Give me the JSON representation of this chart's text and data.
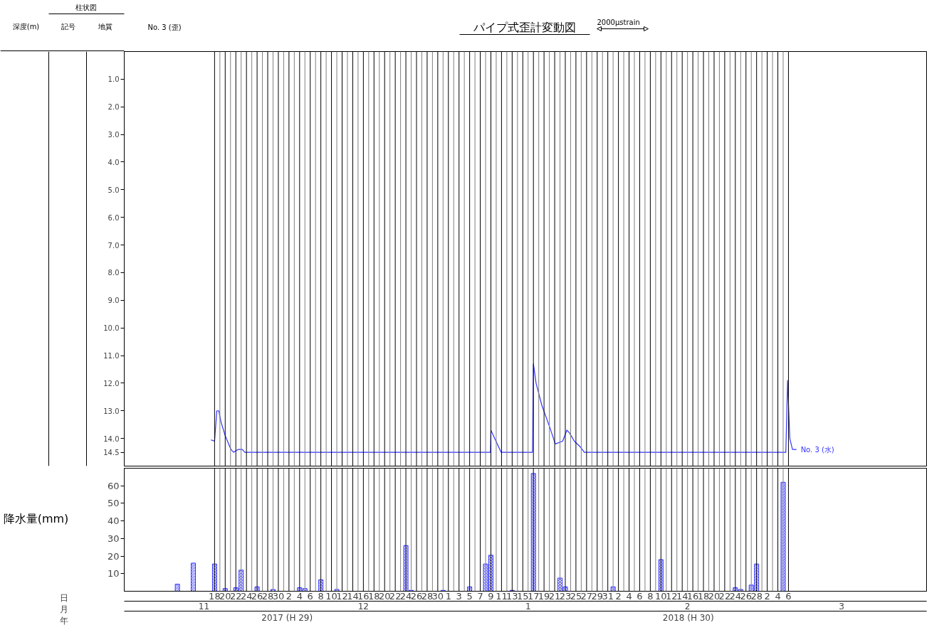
{
  "chart_data": [
    {
      "type": "line",
      "title": "パイプ式歪計変動図",
      "ylabel": "深度(m)",
      "annotations": [
        "柱状図",
        "記号",
        "地質",
        "No. 3 (歪)",
        "2000μstrain"
      ],
      "xlim": [
        "2017-11-01",
        "2018-04-01"
      ],
      "ylim": [
        15,
        0
      ],
      "yticks": [
        {
          "value": 1,
          "label": "1.0"
        },
        {
          "value": 2,
          "label": "2.0"
        },
        {
          "value": 3,
          "label": "3.0"
        },
        {
          "value": 4,
          "label": "4.0"
        },
        {
          "value": 5,
          "label": "5.0"
        },
        {
          "value": 6,
          "label": "6.0"
        },
        {
          "value": 7,
          "label": "7.0"
        },
        {
          "value": 8,
          "label": "8.0"
        },
        {
          "value": 9,
          "label": "9.0"
        },
        {
          "value": 10,
          "label": "10.0"
        },
        {
          "value": 11,
          "label": "11.0"
        },
        {
          "value": 12,
          "label": "12.0"
        },
        {
          "value": 13,
          "label": "13.0"
        },
        {
          "value": 14,
          "label": "14.0"
        },
        {
          "value": 14.5,
          "label": "14.5"
        }
      ],
      "tick_labels": "y",
      "series": [
        {
          "name": "No. 3 (水)",
          "color": "#3333ff",
          "x": [
            "2017-11-17T08:00",
            "2017-11-18",
            "2017-11-18T10:00",
            "2017-11-18T19:00",
            "2017-11-19T05:00",
            "2017-11-20",
            "2017-11-21T02:00",
            "2017-11-21T14:00",
            "2017-11-22T10:00",
            "2017-11-23T05:00",
            "2017-11-23T17:00",
            "2018-01-08T22:00",
            "2018-01-09",
            "2018-01-10T22:00",
            "2018-01-16T20:00",
            "2018-01-17",
            "2018-01-17T12:00",
            "2018-01-18T14:00",
            "2018-01-20T02:00",
            "2018-01-21T03:00",
            "2018-01-22T12:00",
            "2018-01-23T07:00",
            "2018-01-23T19:00",
            "2018-01-24T17:00",
            "2018-01-25T19:00",
            "2018-01-26T14:00",
            "2018-03-05T12:00",
            "2018-03-05T20:00",
            "2018-03-06T06:00",
            "2018-03-06T18:00",
            "2018-03-07T12:00"
          ],
          "values": [
            14.05,
            14.1,
            13.0,
            13.0,
            13.4,
            13.9,
            14.4,
            14.5,
            14.4,
            14.4,
            14.5,
            14.5,
            13.7,
            14.5,
            14.5,
            11.3,
            12.0,
            12.8,
            13.6,
            14.2,
            14.1,
            13.7,
            13.8,
            14.1,
            14.3,
            14.5,
            14.5,
            11.9,
            14.0,
            14.4,
            14.4
          ]
        }
      ],
      "ref_lines": [
        {
          "axis": "x",
          "value": "2017-11-18",
          "color": "#000000"
        },
        {
          "axis": "x",
          "value": "2017-11-19",
          "color": "#808080"
        },
        {
          "axis": "x",
          "value": "2017-11-20",
          "color": "#000000"
        },
        {
          "axis": "x",
          "value": "2017-11-21",
          "color": "#808080"
        },
        {
          "axis": "x",
          "value": "2017-11-22",
          "color": "#000000"
        },
        {
          "axis": "x",
          "value": "2017-11-23",
          "color": "#808080"
        },
        {
          "axis": "x",
          "value": "2017-11-24",
          "color": "#000000"
        },
        {
          "axis": "x",
          "value": "2017-11-25",
          "color": "#808080"
        },
        {
          "axis": "x",
          "value": "2017-11-26",
          "color": "#000000"
        },
        {
          "axis": "x",
          "value": "2017-11-27",
          "color": "#808080"
        },
        {
          "axis": "x",
          "value": "2017-11-28",
          "color": "#000000"
        },
        {
          "axis": "x",
          "value": "2017-11-29",
          "color": "#808080"
        },
        {
          "axis": "x",
          "value": "2017-11-30",
          "color": "#000000"
        },
        {
          "axis": "x",
          "value": "2017-12-01",
          "color": "#808080"
        },
        {
          "axis": "x",
          "value": "2017-12-02",
          "color": "#000000"
        },
        {
          "axis": "x",
          "value": "2017-12-03",
          "color": "#808080"
        },
        {
          "axis": "x",
          "value": "2017-12-04",
          "color": "#000000"
        },
        {
          "axis": "x",
          "value": "2017-12-05",
          "color": "#808080"
        },
        {
          "axis": "x",
          "value": "2017-12-06",
          "color": "#000000"
        },
        {
          "axis": "x",
          "value": "2017-12-07",
          "color": "#808080"
        },
        {
          "axis": "x",
          "value": "2017-12-08",
          "color": "#000000"
        },
        {
          "axis": "x",
          "value": "2017-12-09",
          "color": "#808080"
        },
        {
          "axis": "x",
          "value": "2017-12-10",
          "color": "#000000"
        },
        {
          "axis": "x",
          "value": "2017-12-11",
          "color": "#808080"
        },
        {
          "axis": "x",
          "value": "2017-12-12",
          "color": "#000000"
        },
        {
          "axis": "x",
          "value": "2017-12-13",
          "color": "#808080"
        },
        {
          "axis": "x",
          "value": "2017-12-14",
          "color": "#000000"
        },
        {
          "axis": "x",
          "value": "2017-12-15",
          "color": "#808080"
        },
        {
          "axis": "x",
          "value": "2017-12-16",
          "color": "#000000"
        },
        {
          "axis": "x",
          "value": "2017-12-17",
          "color": "#808080"
        },
        {
          "axis": "x",
          "value": "2017-12-18",
          "color": "#000000"
        },
        {
          "axis": "x",
          "value": "2017-12-19",
          "color": "#808080"
        },
        {
          "axis": "x",
          "value": "2017-12-20",
          "color": "#000000"
        },
        {
          "axis": "x",
          "value": "2017-12-21",
          "color": "#808080"
        },
        {
          "axis": "x",
          "value": "2017-12-22",
          "color": "#000000"
        },
        {
          "axis": "x",
          "value": "2017-12-23",
          "color": "#808080"
        },
        {
          "axis": "x",
          "value": "2017-12-24",
          "color": "#000000"
        },
        {
          "axis": "x",
          "value": "2017-12-25",
          "color": "#808080"
        },
        {
          "axis": "x",
          "value": "2017-12-26",
          "color": "#000000"
        },
        {
          "axis": "x",
          "value": "2017-12-27",
          "color": "#808080"
        },
        {
          "axis": "x",
          "value": "2017-12-28",
          "color": "#000000"
        },
        {
          "axis": "x",
          "value": "2017-12-29",
          "color": "#808080"
        },
        {
          "axis": "x",
          "value": "2017-12-30",
          "color": "#000000"
        },
        {
          "axis": "x",
          "value": "2017-12-31",
          "color": "#808080"
        },
        {
          "axis": "x",
          "value": "2018-01-01",
          "color": "#000000"
        },
        {
          "axis": "x",
          "value": "2018-01-02",
          "color": "#808080"
        },
        {
          "axis": "x",
          "value": "2018-01-03",
          "color": "#000000"
        },
        {
          "axis": "x",
          "value": "2018-01-04",
          "color": "#808080"
        },
        {
          "axis": "x",
          "value": "2018-01-05",
          "color": "#000000"
        },
        {
          "axis": "x",
          "value": "2018-01-06",
          "color": "#808080"
        },
        {
          "axis": "x",
          "value": "2018-01-07",
          "color": "#000000"
        },
        {
          "axis": "x",
          "value": "2018-01-08",
          "color": "#808080"
        },
        {
          "axis": "x",
          "value": "2018-01-09",
          "color": "#000000"
        },
        {
          "axis": "x",
          "value": "2018-01-10",
          "color": "#808080"
        },
        {
          "axis": "x",
          "value": "2018-01-11",
          "color": "#000000"
        },
        {
          "axis": "x",
          "value": "2018-01-12",
          "color": "#808080"
        },
        {
          "axis": "x",
          "value": "2018-01-13",
          "color": "#000000"
        },
        {
          "axis": "x",
          "value": "2018-01-14",
          "color": "#808080"
        },
        {
          "axis": "x",
          "value": "2018-01-15",
          "color": "#000000"
        },
        {
          "axis": "x",
          "value": "2018-01-16",
          "color": "#808080"
        },
        {
          "axis": "x",
          "value": "2018-01-17",
          "color": "#000000"
        },
        {
          "axis": "x",
          "value": "2018-01-18",
          "color": "#808080"
        },
        {
          "axis": "x",
          "value": "2018-01-19",
          "color": "#000000"
        },
        {
          "axis": "x",
          "value": "2018-01-20",
          "color": "#808080"
        },
        {
          "axis": "x",
          "value": "2018-01-21",
          "color": "#000000"
        },
        {
          "axis": "x",
          "value": "2018-01-22",
          "color": "#808080"
        },
        {
          "axis": "x",
          "value": "2018-01-23",
          "color": "#000000"
        },
        {
          "axis": "x",
          "value": "2018-01-24",
          "color": "#808080"
        },
        {
          "axis": "x",
          "value": "2018-01-25",
          "color": "#000000"
        },
        {
          "axis": "x",
          "value": "2018-01-26",
          "color": "#808080"
        },
        {
          "axis": "x",
          "value": "2018-01-27",
          "color": "#000000"
        },
        {
          "axis": "x",
          "value": "2018-01-28",
          "color": "#808080"
        },
        {
          "axis": "x",
          "value": "2018-01-29",
          "color": "#000000"
        },
        {
          "axis": "x",
          "value": "2018-01-30",
          "color": "#808080"
        },
        {
          "axis": "x",
          "value": "2018-01-31",
          "color": "#000000"
        },
        {
          "axis": "x",
          "value": "2018-02-01",
          "color": "#808080"
        },
        {
          "axis": "x",
          "value": "2018-02-02",
          "color": "#000000"
        },
        {
          "axis": "x",
          "value": "2018-02-03",
          "color": "#808080"
        },
        {
          "axis": "x",
          "value": "2018-02-04",
          "color": "#000000"
        },
        {
          "axis": "x",
          "value": "2018-02-05",
          "color": "#808080"
        },
        {
          "axis": "x",
          "value": "2018-02-06",
          "color": "#000000"
        },
        {
          "axis": "x",
          "value": "2018-02-07",
          "color": "#808080"
        },
        {
          "axis": "x",
          "value": "2018-02-08",
          "color": "#000000"
        },
        {
          "axis": "x",
          "value": "2018-02-09",
          "color": "#808080"
        },
        {
          "axis": "x",
          "value": "2018-02-10",
          "color": "#000000"
        },
        {
          "axis": "x",
          "value": "2018-02-11",
          "color": "#808080"
        },
        {
          "axis": "x",
          "value": "2018-02-12",
          "color": "#000000"
        },
        {
          "axis": "x",
          "value": "2018-02-13",
          "color": "#808080"
        },
        {
          "axis": "x",
          "value": "2018-02-14",
          "color": "#000000"
        },
        {
          "axis": "x",
          "value": "2018-02-15",
          "color": "#808080"
        },
        {
          "axis": "x",
          "value": "2018-02-16",
          "color": "#000000"
        },
        {
          "axis": "x",
          "value": "2018-02-17",
          "color": "#808080"
        },
        {
          "axis": "x",
          "value": "2018-02-18",
          "color": "#000000"
        },
        {
          "axis": "x",
          "value": "2018-02-19",
          "color": "#808080"
        },
        {
          "axis": "x",
          "value": "2018-02-20",
          "color": "#000000"
        },
        {
          "axis": "x",
          "value": "2018-02-21",
          "color": "#808080"
        },
        {
          "axis": "x",
          "value": "2018-02-22",
          "color": "#000000"
        },
        {
          "axis": "x",
          "value": "2018-02-23",
          "color": "#808080"
        },
        {
          "axis": "x",
          "value": "2018-02-24",
          "color": "#000000"
        },
        {
          "axis": "x",
          "value": "2018-02-25",
          "color": "#808080"
        },
        {
          "axis": "x",
          "value": "2018-02-26",
          "color": "#000000"
        },
        {
          "axis": "x",
          "value": "2018-02-27",
          "color": "#808080"
        },
        {
          "axis": "x",
          "value": "2018-02-28",
          "color": "#000000"
        },
        {
          "axis": "x",
          "value": "2018-03-01",
          "color": "#808080"
        },
        {
          "axis": "x",
          "value": "2018-03-02",
          "color": "#000000"
        },
        {
          "axis": "x",
          "value": "2018-03-03",
          "color": "#808080"
        },
        {
          "axis": "x",
          "value": "2018-03-04",
          "color": "#000000"
        },
        {
          "axis": "x",
          "value": "2018-03-05",
          "color": "#808080"
        },
        {
          "axis": "x",
          "value": "2018-03-06",
          "color": "#000000"
        }
      ]
    },
    {
      "type": "bar",
      "ylabel": "降水量(mm)",
      "xlabel": "日",
      "x2label": "月",
      "annotations": [
        "年",
        "2017 (H 29)",
        "2018 (H 30)"
      ],
      "color": "#3333ff",
      "x": [
        "2017-11-11",
        "2017-11-14",
        "2017-11-18",
        "2017-11-20",
        "2017-11-22",
        "2017-11-23",
        "2017-11-26",
        "2017-11-29",
        "2017-12-04",
        "2017-12-05",
        "2017-12-08",
        "2017-12-11",
        "2017-12-24",
        "2017-12-25",
        "2017-12-31",
        "2018-01-05",
        "2018-01-08",
        "2018-01-09",
        "2018-01-13",
        "2018-01-17",
        "2018-01-22",
        "2018-01-23",
        "2018-02-01",
        "2018-02-10",
        "2018-02-24",
        "2018-02-25",
        "2018-02-27",
        "2018-02-28",
        "2018-03-05"
      ],
      "values": [
        4,
        16,
        15.5,
        1.5,
        2,
        12,
        2.5,
        1,
        2,
        1.5,
        6.5,
        1,
        26,
        0.5,
        0.5,
        2.5,
        15.5,
        20.5,
        0.5,
        67,
        7.5,
        2.5,
        2.5,
        18,
        2,
        1,
        3.5,
        15.5,
        62
      ],
      "xlim": [
        "2017-11-01",
        "2018-04-01"
      ],
      "ylim": [
        0,
        70
      ],
      "yticks": [
        10,
        20,
        30,
        40,
        50,
        60
      ],
      "xticks": [
        {
          "value": "2017-11-18",
          "label": "18"
        },
        {
          "value": "2017-11-20",
          "label": "20"
        },
        {
          "value": "2017-11-22",
          "label": "22"
        },
        {
          "value": "2017-11-24",
          "label": "24"
        },
        {
          "value": "2017-11-26",
          "label": "26"
        },
        {
          "value": "2017-11-28",
          "label": "28"
        },
        {
          "value": "2017-11-30",
          "label": "30"
        },
        {
          "value": "2017-12-02",
          "label": "2"
        },
        {
          "value": "2017-12-04",
          "label": "4"
        },
        {
          "value": "2017-12-06",
          "label": "6"
        },
        {
          "value": "2017-12-08",
          "label": "8"
        },
        {
          "value": "2017-12-10",
          "label": "10"
        },
        {
          "value": "2017-12-12",
          "label": "12"
        },
        {
          "value": "2017-12-14",
          "label": "14"
        },
        {
          "value": "2017-12-16",
          "label": "16"
        },
        {
          "value": "2017-12-18",
          "label": "18"
        },
        {
          "value": "2017-12-20",
          "label": "20"
        },
        {
          "value": "2017-12-22",
          "label": "22"
        },
        {
          "value": "2017-12-24",
          "label": "24"
        },
        {
          "value": "2017-12-26",
          "label": "26"
        },
        {
          "value": "2017-12-28",
          "label": "28"
        },
        {
          "value": "2017-12-30",
          "label": "30"
        },
        {
          "value": "2018-01-01",
          "label": "1"
        },
        {
          "value": "2018-01-03",
          "label": "3"
        },
        {
          "value": "2018-01-05",
          "label": "5"
        },
        {
          "value": "2018-01-07",
          "label": "7"
        },
        {
          "value": "2018-01-09",
          "label": "9"
        },
        {
          "value": "2018-01-11",
          "label": "11"
        },
        {
          "value": "2018-01-13",
          "label": "13"
        },
        {
          "value": "2018-01-15",
          "label": "15"
        },
        {
          "value": "2018-01-17",
          "label": "17"
        },
        {
          "value": "2018-01-19",
          "label": "19"
        },
        {
          "value": "2018-01-21",
          "label": "21"
        },
        {
          "value": "2018-01-23",
          "label": "23"
        },
        {
          "value": "2018-01-25",
          "label": "25"
        },
        {
          "value": "2018-01-27",
          "label": "27"
        },
        {
          "value": "2018-01-29",
          "label": "29"
        },
        {
          "value": "2018-01-31",
          "label": "31"
        },
        {
          "value": "2018-02-02",
          "label": "2"
        },
        {
          "value": "2018-02-04",
          "label": "4"
        },
        {
          "value": "2018-02-06",
          "label": "6"
        },
        {
          "value": "2018-02-08",
          "label": "8"
        },
        {
          "value": "2018-02-10",
          "label": "10"
        },
        {
          "value": "2018-02-12",
          "label": "12"
        },
        {
          "value": "2018-02-14",
          "label": "14"
        },
        {
          "value": "2018-02-16",
          "label": "16"
        },
        {
          "value": "2018-02-18",
          "label": "18"
        },
        {
          "value": "2018-02-20",
          "label": "20"
        },
        {
          "value": "2018-02-22",
          "label": "22"
        },
        {
          "value": "2018-02-24",
          "label": "24"
        },
        {
          "value": "2018-02-26",
          "label": "26"
        },
        {
          "value": "2018-02-28",
          "label": "28"
        },
        {
          "value": "2018-03-02",
          "label": "2"
        },
        {
          "value": "2018-03-04",
          "label": "4"
        },
        {
          "value": "2018-03-06",
          "label": "6"
        }
      ],
      "x2lim": [
        "2017-11-01",
        "2018-04-01"
      ],
      "x2ticks": [
        {
          "value": "2017-11-16",
          "label": "11"
        },
        {
          "value": "2017-12-16",
          "label": "12"
        },
        {
          "value": "2018-01-16",
          "label": "1"
        },
        {
          "value": "2018-02-15",
          "label": "2"
        },
        {
          "value": "2018-03-16",
          "label": "3"
        }
      ],
      "ref_lines": [
        {
          "axis": "x",
          "value": "2017-11-18",
          "color": "#000000"
        },
        {
          "axis": "x",
          "value": "2017-11-19",
          "color": "#808080"
        },
        {
          "axis": "x",
          "value": "2017-11-20",
          "color": "#000000"
        },
        {
          "axis": "x",
          "value": "2017-11-21",
          "color": "#808080"
        },
        {
          "axis": "x",
          "value": "2017-11-22",
          "color": "#000000"
        },
        {
          "axis": "x",
          "value": "2017-11-23",
          "color": "#808080"
        },
        {
          "axis": "x",
          "value": "2017-11-24",
          "color": "#000000"
        },
        {
          "axis": "x",
          "value": "2017-11-25",
          "color": "#808080"
        },
        {
          "axis": "x",
          "value": "2017-11-26",
          "color": "#000000"
        },
        {
          "axis": "x",
          "value": "2017-11-27",
          "color": "#808080"
        },
        {
          "axis": "x",
          "value": "2017-11-28",
          "color": "#000000"
        },
        {
          "axis": "x",
          "value": "2017-11-29",
          "color": "#808080"
        },
        {
          "axis": "x",
          "value": "2017-11-30",
          "color": "#000000"
        },
        {
          "axis": "x",
          "value": "2017-12-01",
          "color": "#808080"
        },
        {
          "axis": "x",
          "value": "2017-12-02",
          "color": "#000000"
        },
        {
          "axis": "x",
          "value": "2017-12-03",
          "color": "#808080"
        },
        {
          "axis": "x",
          "value": "2017-12-04",
          "color": "#000000"
        },
        {
          "axis": "x",
          "value": "2017-12-05",
          "color": "#808080"
        },
        {
          "axis": "x",
          "value": "2017-12-06",
          "color": "#000000"
        },
        {
          "axis": "x",
          "value": "2017-12-07",
          "color": "#808080"
        },
        {
          "axis": "x",
          "value": "2017-12-08",
          "color": "#000000"
        },
        {
          "axis": "x",
          "value": "2017-12-09",
          "color": "#808080"
        },
        {
          "axis": "x",
          "value": "2017-12-10",
          "color": "#000000"
        },
        {
          "axis": "x",
          "value": "2017-12-11",
          "color": "#808080"
        },
        {
          "axis": "x",
          "value": "2017-12-12",
          "color": "#000000"
        },
        {
          "axis": "x",
          "value": "2017-12-13",
          "color": "#808080"
        },
        {
          "axis": "x",
          "value": "2017-12-14",
          "color": "#000000"
        },
        {
          "axis": "x",
          "value": "2017-12-15",
          "color": "#808080"
        },
        {
          "axis": "x",
          "value": "2017-12-16",
          "color": "#000000"
        },
        {
          "axis": "x",
          "value": "2017-12-17",
          "color": "#808080"
        },
        {
          "axis": "x",
          "value": "2017-12-18",
          "color": "#000000"
        },
        {
          "axis": "x",
          "value": "2017-12-19",
          "color": "#808080"
        },
        {
          "axis": "x",
          "value": "2017-12-20",
          "color": "#000000"
        },
        {
          "axis": "x",
          "value": "2017-12-21",
          "color": "#808080"
        },
        {
          "axis": "x",
          "value": "2017-12-22",
          "color": "#000000"
        },
        {
          "axis": "x",
          "value": "2017-12-23",
          "color": "#808080"
        },
        {
          "axis": "x",
          "value": "2017-12-24",
          "color": "#000000"
        },
        {
          "axis": "x",
          "value": "2017-12-25",
          "color": "#808080"
        },
        {
          "axis": "x",
          "value": "2017-12-26",
          "color": "#000000"
        },
        {
          "axis": "x",
          "value": "2017-12-27",
          "color": "#808080"
        },
        {
          "axis": "x",
          "value": "2017-12-28",
          "color": "#000000"
        },
        {
          "axis": "x",
          "value": "2017-12-29",
          "color": "#808080"
        },
        {
          "axis": "x",
          "value": "2017-12-30",
          "color": "#000000"
        },
        {
          "axis": "x",
          "value": "2017-12-31",
          "color": "#808080"
        },
        {
          "axis": "x",
          "value": "2018-01-01",
          "color": "#000000"
        },
        {
          "axis": "x",
          "value": "2018-01-02",
          "color": "#808080"
        },
        {
          "axis": "x",
          "value": "2018-01-03",
          "color": "#000000"
        },
        {
          "axis": "x",
          "value": "2018-01-04",
          "color": "#808080"
        },
        {
          "axis": "x",
          "value": "2018-01-05",
          "color": "#000000"
        },
        {
          "axis": "x",
          "value": "2018-01-06",
          "color": "#808080"
        },
        {
          "axis": "x",
          "value": "2018-01-07",
          "color": "#000000"
        },
        {
          "axis": "x",
          "value": "2018-01-08",
          "color": "#808080"
        },
        {
          "axis": "x",
          "value": "2018-01-09",
          "color": "#000000"
        },
        {
          "axis": "x",
          "value": "2018-01-10",
          "color": "#808080"
        },
        {
          "axis": "x",
          "value": "2018-01-11",
          "color": "#000000"
        },
        {
          "axis": "x",
          "value": "2018-01-12",
          "color": "#808080"
        },
        {
          "axis": "x",
          "value": "2018-01-13",
          "color": "#000000"
        },
        {
          "axis": "x",
          "value": "2018-01-14",
          "color": "#808080"
        },
        {
          "axis": "x",
          "value": "2018-01-15",
          "color": "#000000"
        },
        {
          "axis": "x",
          "value": "2018-01-16",
          "color": "#808080"
        },
        {
          "axis": "x",
          "value": "2018-01-17",
          "color": "#000000"
        },
        {
          "axis": "x",
          "value": "2018-01-18",
          "color": "#808080"
        },
        {
          "axis": "x",
          "value": "2018-01-19",
          "color": "#000000"
        },
        {
          "axis": "x",
          "value": "2018-01-20",
          "color": "#808080"
        },
        {
          "axis": "x",
          "value": "2018-01-21",
          "color": "#000000"
        },
        {
          "axis": "x",
          "value": "2018-01-22",
          "color": "#808080"
        },
        {
          "axis": "x",
          "value": "2018-01-23",
          "color": "#000000"
        },
        {
          "axis": "x",
          "value": "2018-01-24",
          "color": "#808080"
        },
        {
          "axis": "x",
          "value": "2018-01-25",
          "color": "#000000"
        },
        {
          "axis": "x",
          "value": "2018-01-26",
          "color": "#808080"
        },
        {
          "axis": "x",
          "value": "2018-01-27",
          "color": "#000000"
        },
        {
          "axis": "x",
          "value": "2018-01-28",
          "color": "#808080"
        },
        {
          "axis": "x",
          "value": "2018-01-29",
          "color": "#000000"
        },
        {
          "axis": "x",
          "value": "2018-01-30",
          "color": "#808080"
        },
        {
          "axis": "x",
          "value": "2018-01-31",
          "color": "#000000"
        },
        {
          "axis": "x",
          "value": "2018-02-01",
          "color": "#808080"
        },
        {
          "axis": "x",
          "value": "2018-02-02",
          "color": "#000000"
        },
        {
          "axis": "x",
          "value": "2018-02-03",
          "color": "#808080"
        },
        {
          "axis": "x",
          "value": "2018-02-04",
          "color": "#000000"
        },
        {
          "axis": "x",
          "value": "2018-02-05",
          "color": "#808080"
        },
        {
          "axis": "x",
          "value": "2018-02-06",
          "color": "#000000"
        },
        {
          "axis": "x",
          "value": "2018-02-07",
          "color": "#808080"
        },
        {
          "axis": "x",
          "value": "2018-02-08",
          "color": "#000000"
        },
        {
          "axis": "x",
          "value": "2018-02-09",
          "color": "#808080"
        },
        {
          "axis": "x",
          "value": "2018-02-10",
          "color": "#000000"
        },
        {
          "axis": "x",
          "value": "2018-02-11",
          "color": "#808080"
        },
        {
          "axis": "x",
          "value": "2018-02-12",
          "color": "#000000"
        },
        {
          "axis": "x",
          "value": "2018-02-13",
          "color": "#808080"
        },
        {
          "axis": "x",
          "value": "2018-02-14",
          "color": "#000000"
        },
        {
          "axis": "x",
          "value": "2018-02-15",
          "color": "#808080"
        },
        {
          "axis": "x",
          "value": "2018-02-16",
          "color": "#000000"
        },
        {
          "axis": "x",
          "value": "2018-02-17",
          "color": "#808080"
        },
        {
          "axis": "x",
          "value": "2018-02-18",
          "color": "#000000"
        },
        {
          "axis": "x",
          "value": "2018-02-19",
          "color": "#808080"
        },
        {
          "axis": "x",
          "value": "2018-02-20",
          "color": "#000000"
        },
        {
          "axis": "x",
          "value": "2018-02-21",
          "color": "#808080"
        },
        {
          "axis": "x",
          "value": "2018-02-22",
          "color": "#000000"
        },
        {
          "axis": "x",
          "value": "2018-02-23",
          "color": "#808080"
        },
        {
          "axis": "x",
          "value": "2018-02-24",
          "color": "#000000"
        },
        {
          "axis": "x",
          "value": "2018-02-25",
          "color": "#808080"
        },
        {
          "axis": "x",
          "value": "2018-02-26",
          "color": "#000000"
        },
        {
          "axis": "x",
          "value": "2018-02-27",
          "color": "#808080"
        },
        {
          "axis": "x",
          "value": "2018-02-28",
          "color": "#000000"
        },
        {
          "axis": "x",
          "value": "2018-03-01",
          "color": "#808080"
        },
        {
          "axis": "x",
          "value": "2018-03-02",
          "color": "#000000"
        },
        {
          "axis": "x",
          "value": "2018-03-03",
          "color": "#808080"
        },
        {
          "axis": "x",
          "value": "2018-03-04",
          "color": "#000000"
        },
        {
          "axis": "x",
          "value": "2018-03-05",
          "color": "#808080"
        },
        {
          "axis": "x",
          "value": "2018-03-06",
          "color": "#000000"
        }
      ]
    }
  ]
}
